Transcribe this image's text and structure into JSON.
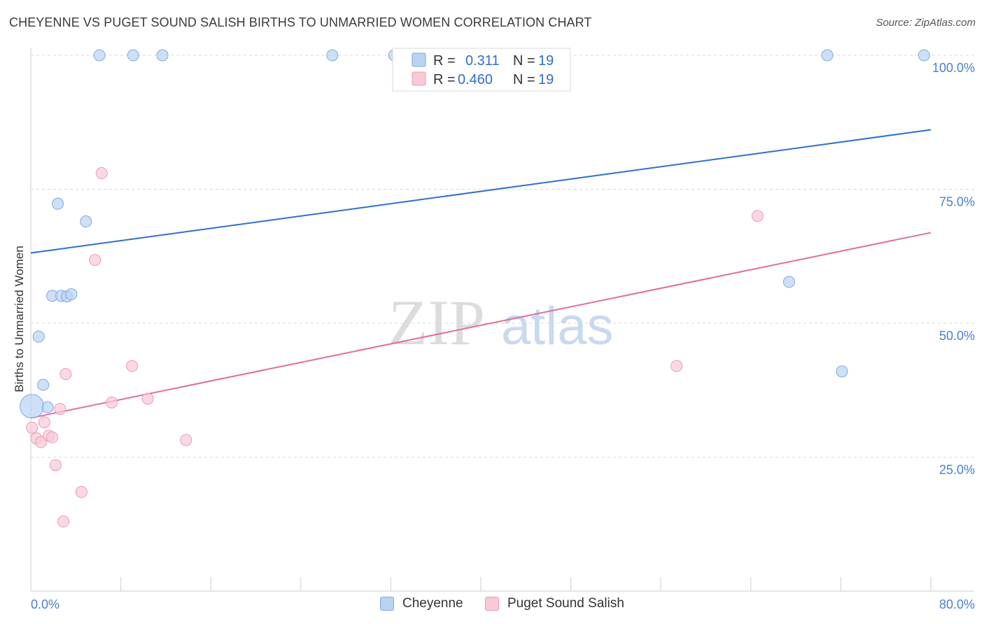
{
  "title": "CHEYENNE VS PUGET SOUND SALISH BIRTHS TO UNMARRIED WOMEN CORRELATION CHART",
  "source": "Source: ZipAtlas.com",
  "watermark": {
    "zip": "ZIP",
    "atlas": "atlas"
  },
  "colors": {
    "cheyenne_fill": "#b9d3f3",
    "cheyenne_stroke": "#7fa9e0",
    "cheyenne_line": "#2f6fcc",
    "salish_fill": "#f9c9d6",
    "salish_stroke": "#ec9ab2",
    "salish_line": "#e06f96",
    "tick_text": "#4a7fd0",
    "grid": "#d9d9d9"
  },
  "legend": {
    "rows": [
      {
        "r_label": "R =",
        "r_value": "0.311",
        "n_label": "N =",
        "n_value": "19"
      },
      {
        "r_label": "R =",
        "r_value": "0.460",
        "n_label": "N =",
        "n_value": "19"
      }
    ]
  },
  "bottom_legend": {
    "series1": "Cheyenne",
    "series2": "Puget Sound Salish"
  },
  "chart_data": {
    "type": "scatter",
    "title": "CHEYENNE VS PUGET SOUND SALISH BIRTHS TO UNMARRIED WOMEN CORRELATION CHART",
    "xlabel": "",
    "ylabel": "Births to Unmarried Women",
    "xlim": [
      0,
      80
    ],
    "ylim": [
      0,
      105
    ],
    "x_tick_labels": [
      "0.0%",
      "80.0%"
    ],
    "y_ticks": [
      25,
      50,
      75,
      100
    ],
    "y_tick_labels": [
      "25.0%",
      "50.0%",
      "75.0%",
      "100.0%"
    ],
    "grid": true,
    "series": [
      {
        "name": "Cheyenne",
        "r": 0.311,
        "n": 19,
        "trend": {
          "x": [
            0,
            80
          ],
          "y": [
            63.1,
            86.1
          ]
        },
        "points": [
          {
            "x": 0.1,
            "y": 34.5,
            "big": true
          },
          {
            "x": 0.7,
            "y": 47.5
          },
          {
            "x": 1.1,
            "y": 38.5
          },
          {
            "x": 1.5,
            "y": 34.3
          },
          {
            "x": 1.9,
            "y": 55.1
          },
          {
            "x": 2.4,
            "y": 72.3
          },
          {
            "x": 2.7,
            "y": 55.1
          },
          {
            "x": 3.2,
            "y": 55.0
          },
          {
            "x": 3.6,
            "y": 55.4
          },
          {
            "x": 4.9,
            "y": 69.0
          },
          {
            "x": 6.1,
            "y": 100.0
          },
          {
            "x": 9.1,
            "y": 100.0
          },
          {
            "x": 11.7,
            "y": 100.0
          },
          {
            "x": 26.8,
            "y": 100.0
          },
          {
            "x": 32.3,
            "y": 100.0
          },
          {
            "x": 67.4,
            "y": 57.7
          },
          {
            "x": 70.8,
            "y": 100.0
          },
          {
            "x": 72.1,
            "y": 41.0
          },
          {
            "x": 79.4,
            "y": 100.0
          }
        ]
      },
      {
        "name": "Puget Sound Salish",
        "r": 0.46,
        "n": 19,
        "trend": {
          "x": [
            0,
            80
          ],
          "y": [
            32.3,
            66.9
          ]
        },
        "points": [
          {
            "x": 0.1,
            "y": 30.5
          },
          {
            "x": 0.5,
            "y": 28.5
          },
          {
            "x": 0.9,
            "y": 27.8
          },
          {
            "x": 1.2,
            "y": 31.5
          },
          {
            "x": 1.6,
            "y": 29.0
          },
          {
            "x": 1.9,
            "y": 28.7
          },
          {
            "x": 2.2,
            "y": 23.5
          },
          {
            "x": 2.6,
            "y": 34.0
          },
          {
            "x": 2.9,
            "y": 13.0
          },
          {
            "x": 3.1,
            "y": 40.5
          },
          {
            "x": 4.5,
            "y": 18.5
          },
          {
            "x": 5.7,
            "y": 61.8
          },
          {
            "x": 6.3,
            "y": 78.0
          },
          {
            "x": 7.2,
            "y": 35.2
          },
          {
            "x": 9.0,
            "y": 42.0
          },
          {
            "x": 10.4,
            "y": 35.9
          },
          {
            "x": 13.8,
            "y": 28.2
          },
          {
            "x": 57.4,
            "y": 42.0
          },
          {
            "x": 64.6,
            "y": 70.0
          }
        ]
      }
    ]
  }
}
